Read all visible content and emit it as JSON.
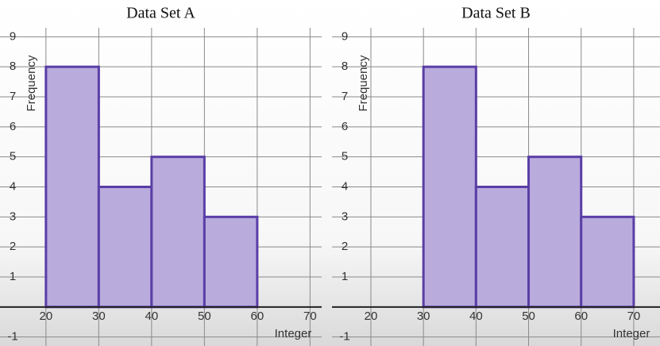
{
  "chart_data": [
    {
      "type": "histogram",
      "title": "Data Set A",
      "x_label": "Integer",
      "y_label": "Frequency",
      "bins": [
        20,
        30,
        40,
        50,
        60
      ],
      "values": [
        8,
        4,
        5,
        3
      ],
      "color": "#b9acdd",
      "edge_color": "#5a3ea6",
      "xlim": [
        11.3,
        72.2
      ],
      "ylim": [
        -1.3,
        9.3
      ],
      "xticks": [
        20,
        30,
        40,
        50,
        60,
        70
      ],
      "yticks": [
        -1,
        1,
        2,
        3,
        4,
        5,
        6,
        7,
        8,
        9
      ],
      "grid": true
    },
    {
      "type": "histogram",
      "title": "Data Set B",
      "x_label": "Integer",
      "y_label": "Frequency",
      "bins": [
        30,
        40,
        50,
        60,
        70
      ],
      "values": [
        8,
        4,
        5,
        3
      ],
      "color": "#b9acdd",
      "edge_color": "#5a3ea6",
      "xlim": [
        12.6,
        75.0
      ],
      "ylim": [
        -1.3,
        9.3
      ],
      "xticks": [
        20,
        30,
        40,
        50,
        60,
        70
      ],
      "yticks": [
        -1,
        1,
        2,
        3,
        4,
        5,
        6,
        7,
        8,
        9
      ],
      "grid": true
    }
  ]
}
